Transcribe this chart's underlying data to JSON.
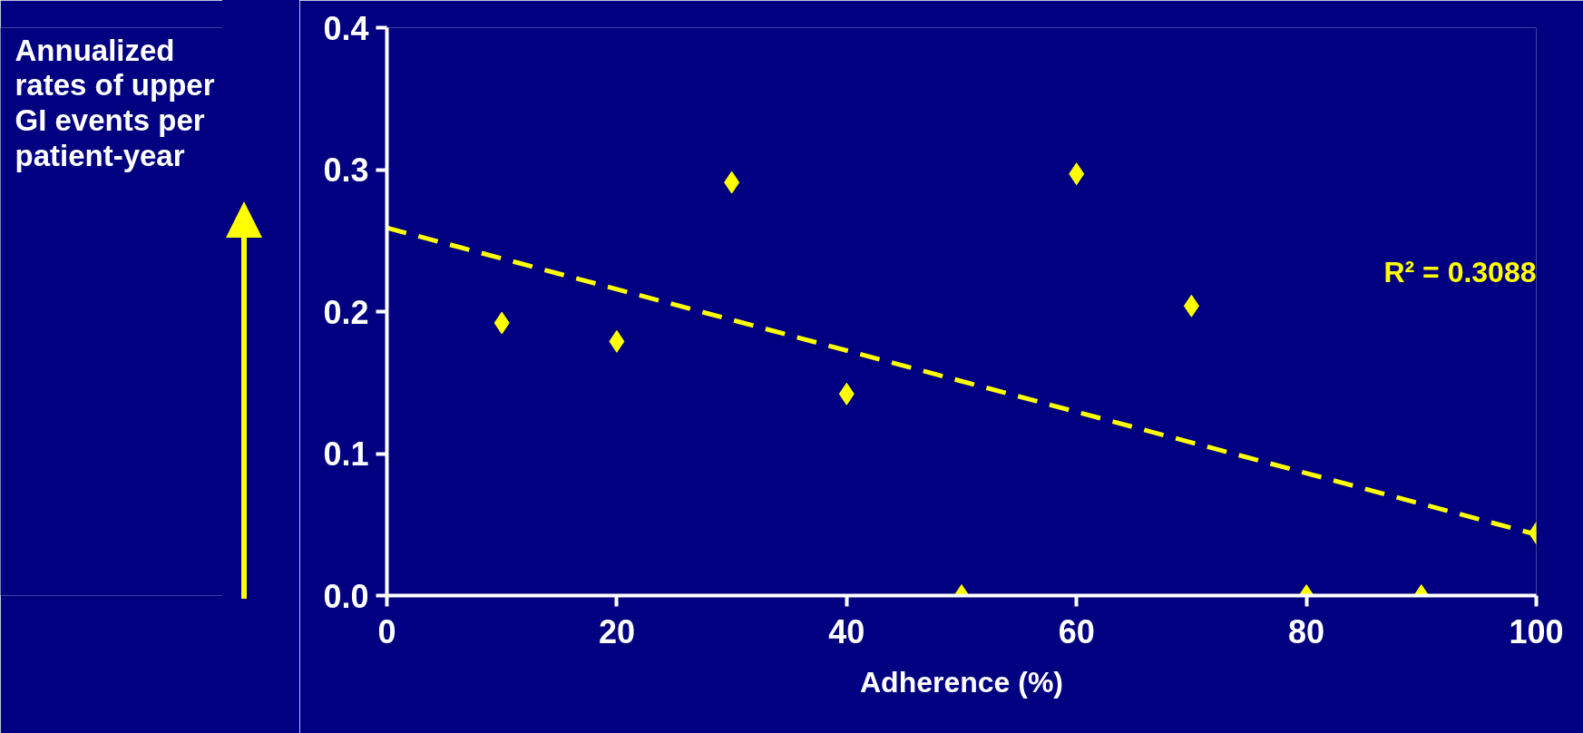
{
  "chart_data": {
    "type": "scatter",
    "xlabel": "Adherence (%)",
    "ylabel": "Annualized rates of upper GI events per patient-year",
    "x": [
      10,
      20,
      30,
      40,
      50,
      60,
      70,
      80,
      90,
      100
    ],
    "series": [
      {
        "color": "#ffff00",
        "marker": "diamond",
        "values": [
          0.192,
          0.179,
          0.291,
          0.142,
          0,
          0.297,
          0.204,
          0,
          0,
          0.044
        ]
      },
      {
        "type": "line",
        "color": "#ffff00",
        "line_style": "dashed",
        "x": [
          0,
          100
        ],
        "values": [
          0.259,
          0.043
        ]
      }
    ],
    "annotations": [
      "R² = 0.3088"
    ],
    "xlim": [
      0,
      100
    ],
    "ylim": [
      0,
      0.4
    ],
    "xticks": [
      0,
      20,
      40,
      60,
      80,
      100
    ],
    "yticks": [
      {
        "value": 0,
        "label": "0.0"
      },
      {
        "value": 0.1,
        "label": "0.1"
      },
      {
        "value": 0.2,
        "label": "0.2"
      },
      {
        "value": 0.3,
        "label": "0.3"
      },
      {
        "value": 0.4,
        "label": "0.4"
      }
    ],
    "grid": false
  }
}
